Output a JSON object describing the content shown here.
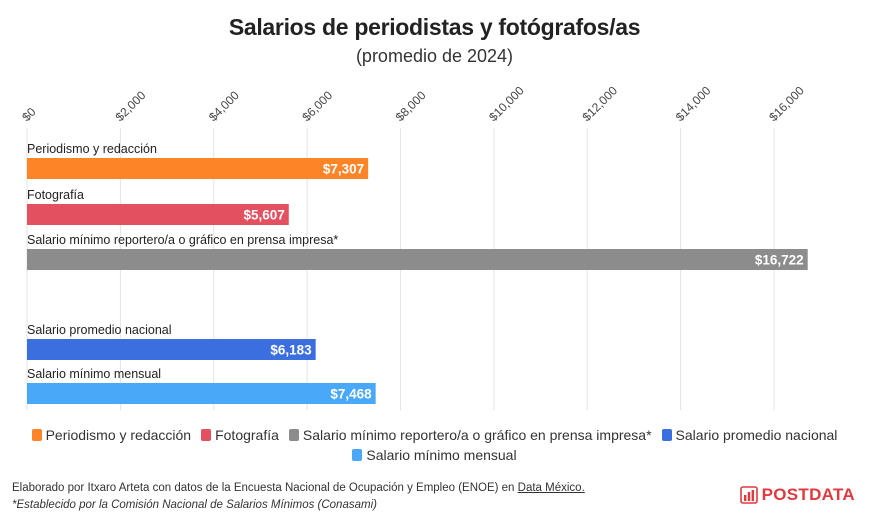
{
  "chart_data": {
    "type": "bar",
    "orientation": "horizontal",
    "title": "Salarios de periodistas y fotógrafos/as",
    "subtitle": "(promedio de 2024)",
    "xlim": [
      0,
      16000
    ],
    "x_ticks": [
      0,
      2000,
      4000,
      6000,
      8000,
      10000,
      12000,
      14000,
      16000
    ],
    "x_tick_labels": [
      "$0",
      "$2,000",
      "$4,000",
      "$6,000",
      "$8,000",
      "$10,000",
      "$12,000",
      "$14,000",
      "$16,000"
    ],
    "grid": true,
    "legend_position": "bottom",
    "categories": [
      "Periodismo y redacción",
      "Fotografía",
      "Salario mínimo reportero/a o gráfico en prensa impresa*",
      "Salario promedio nacional",
      "Salario mínimo mensual"
    ],
    "values": [
      7307,
      5607,
      16722,
      6183,
      7468
    ],
    "value_labels": [
      "$7,307",
      "$5,607",
      "$16,722",
      "$6,183",
      "$7,468"
    ],
    "colors": [
      "#fd8528",
      "#e35060",
      "#8c8c8c",
      "#3b6fe0",
      "#4aa8f8"
    ]
  },
  "footer": {
    "credit": "Elaborado por Itxaro Arteta con datos de la Encuesta Nacional de Ocupación y Empleo (ENOE) en",
    "source_link": "Data México.",
    "footnote": "*Establecido por la Comisión Nacional de Salarios Mínimos (Conasami)"
  },
  "brand": {
    "name": "POSTDATA",
    "color": "#e0393e",
    "icon": "bar-chart-logo-icon"
  }
}
